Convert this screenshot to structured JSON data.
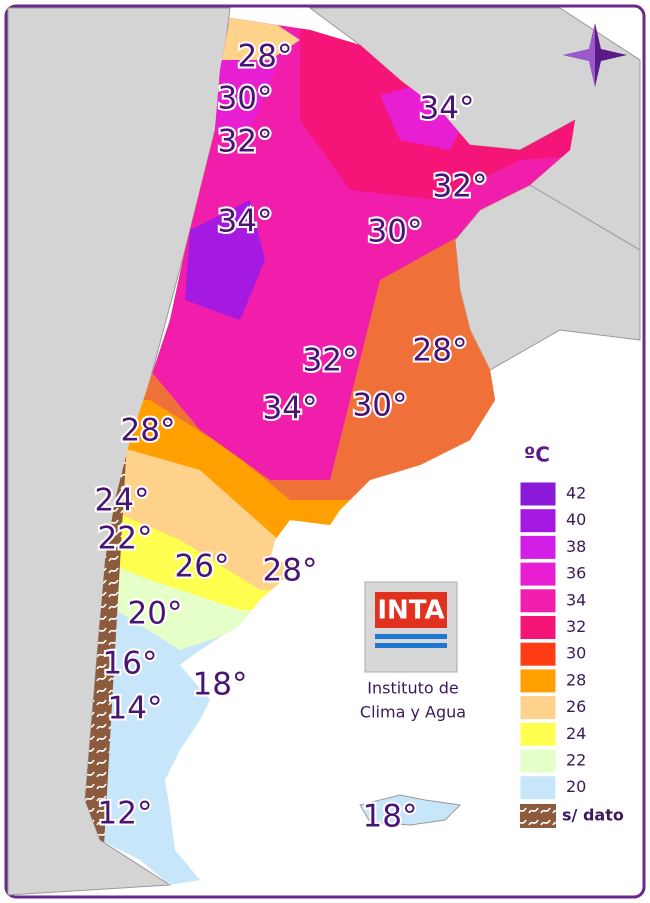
{
  "map": {
    "unit": "ºC",
    "isotherm_labels": [
      "28°",
      "30°",
      "32°",
      "34°",
      "32°",
      "34°",
      "30°",
      "28°",
      "32°",
      "34°",
      "30°",
      "28°",
      "24°",
      "22°",
      "26°",
      "28°",
      "20°",
      "16°",
      "18°",
      "14°",
      "12°",
      "18°"
    ],
    "legend": [
      {
        "value": 42,
        "color": "#8a1ad8"
      },
      {
        "value": 40,
        "color": "#a51ae0"
      },
      {
        "value": 38,
        "color": "#d21ee6"
      },
      {
        "value": 36,
        "color": "#e81ed2"
      },
      {
        "value": 34,
        "color": "#f01eaa"
      },
      {
        "value": 32,
        "color": "#f51478"
      },
      {
        "value": 30,
        "color": "#ff3c14"
      },
      {
        "value": 28,
        "color": "#ffa000"
      },
      {
        "value": 26,
        "color": "#ffd28c"
      },
      {
        "value": 24,
        "color": "#ffff50"
      },
      {
        "value": 22,
        "color": "#e6ffc8"
      },
      {
        "value": 20,
        "color": "#c8e6fa"
      }
    ],
    "no_data": {
      "label": "s/ dato",
      "color": "#8c5a3c"
    },
    "logo": {
      "text": "INTA",
      "line1": "Instituto de",
      "line2": "Clima y Agua"
    }
  }
}
